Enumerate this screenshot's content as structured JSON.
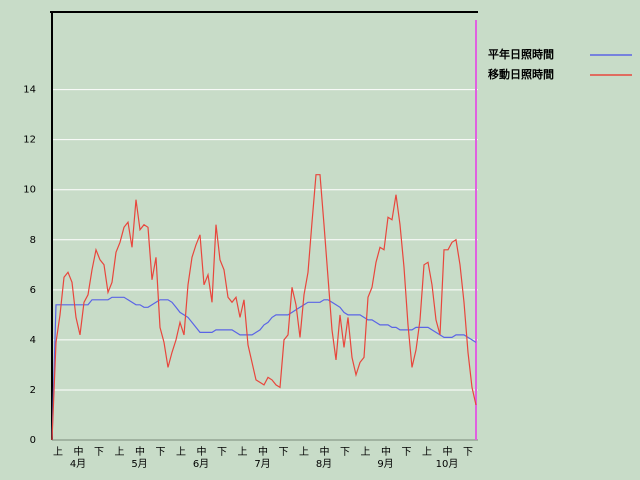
{
  "chart_data": {
    "type": "line",
    "dekads": [
      "上",
      "中",
      "下",
      "上",
      "中",
      "下",
      "上",
      "中",
      "下",
      "上",
      "中",
      "下",
      "上",
      "中",
      "下",
      "上",
      "中",
      "下",
      "上",
      "中",
      "下"
    ],
    "months": [
      "4月",
      "5月",
      "6月",
      "7月",
      "8月",
      "9月",
      "10月"
    ],
    "ylim": [
      0,
      17.1
    ],
    "yticks": [
      0,
      2,
      4,
      6,
      8,
      10,
      12,
      14
    ],
    "grid": true,
    "legend": "top-right",
    "series": [
      {
        "name": "平年日照時間",
        "color": "#5a64e6",
        "values": [
          0,
          5.4,
          5.4,
          5.4,
          5.4,
          5.4,
          5.4,
          5.4,
          5.4,
          5.4,
          5.6,
          5.6,
          5.6,
          5.6,
          5.6,
          5.7,
          5.7,
          5.7,
          5.7,
          5.6,
          5.5,
          5.4,
          5.4,
          5.3,
          5.3,
          5.4,
          5.5,
          5.6,
          5.6,
          5.6,
          5.5,
          5.3,
          5.1,
          5.0,
          4.9,
          4.7,
          4.5,
          4.3,
          4.3,
          4.3,
          4.3,
          4.4,
          4.4,
          4.4,
          4.4,
          4.4,
          4.3,
          4.2,
          4.2,
          4.2,
          4.2,
          4.3,
          4.4,
          4.6,
          4.7,
          4.9,
          5.0,
          5.0,
          5.0,
          5.0,
          5.1,
          5.2,
          5.3,
          5.4,
          5.5,
          5.5,
          5.5,
          5.5,
          5.6,
          5.6,
          5.5,
          5.4,
          5.3,
          5.1,
          5.0,
          5.0,
          5.0,
          5.0,
          4.9,
          4.8,
          4.8,
          4.7,
          4.6,
          4.6,
          4.6,
          4.5,
          4.5,
          4.4,
          4.4,
          4.4,
          4.4,
          4.5,
          4.5,
          4.5,
          4.5,
          4.4,
          4.3,
          4.2,
          4.1,
          4.1,
          4.1,
          4.2,
          4.2,
          4.2,
          4.1,
          4.0,
          3.9
        ]
      },
      {
        "name": "移動日照時間",
        "color": "#e8463c",
        "values": [
          0,
          3.9,
          5,
          6.5,
          6.7,
          6.3,
          4.9,
          4.2,
          5.5,
          5.8,
          6.8,
          7.6,
          7.2,
          7,
          5.9,
          6.3,
          7.5,
          7.9,
          8.5,
          8.7,
          7.7,
          9.6,
          8.4,
          8.6,
          8.5,
          6.4,
          7.3,
          4.5,
          3.9,
          2.9,
          3.5,
          4,
          4.7,
          4.2,
          6.2,
          7.3,
          7.8,
          8.2,
          6.2,
          6.6,
          5.5,
          8.6,
          7.2,
          6.8,
          5.7,
          5.5,
          5.7,
          4.9,
          5.6,
          3.8,
          3.1,
          2.4,
          2.3,
          2.2,
          2.5,
          2.4,
          2.2,
          2.1,
          4,
          4.2,
          6.1,
          5.4,
          4.1,
          5.8,
          6.7,
          8.7,
          10.6,
          10.6,
          8.6,
          6.5,
          4.4,
          3.2,
          5,
          3.7,
          4.9,
          3.3,
          2.6,
          3.1,
          3.3,
          5.7,
          6.1,
          7.1,
          7.7,
          7.6,
          8.9,
          8.8,
          9.8,
          8.6,
          6.9,
          4.6,
          2.9,
          3.6,
          4.8,
          7,
          7.1,
          6.2,
          4.8,
          4.2,
          7.6,
          7.6,
          7.9,
          8,
          7,
          5.5,
          3.5,
          2.1,
          1.4
        ]
      }
    ]
  }
}
